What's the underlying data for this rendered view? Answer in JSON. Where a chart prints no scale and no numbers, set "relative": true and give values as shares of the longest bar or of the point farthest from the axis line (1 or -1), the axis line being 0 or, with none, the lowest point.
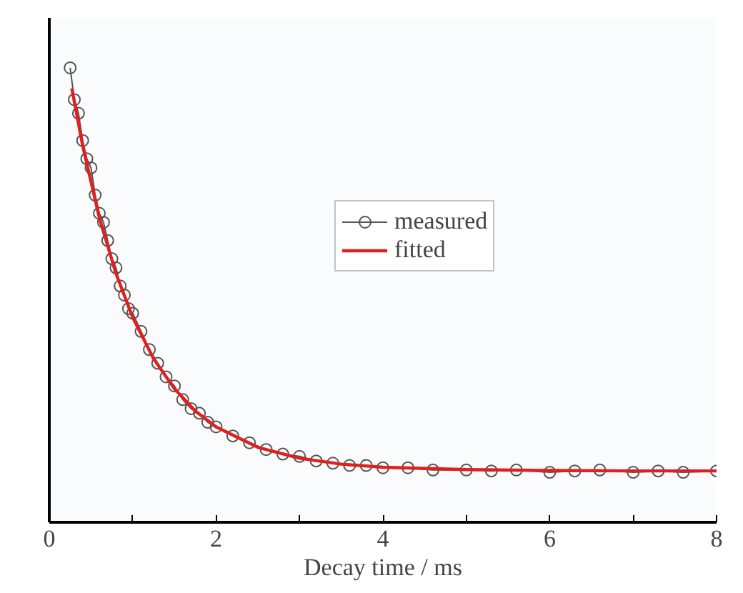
{
  "chart_data": {
    "type": "line",
    "xlabel": "Decay time / ms",
    "relative": true,
    "xlim": [
      0,
      8
    ],
    "xticks": [
      0,
      {
        "value": 1,
        "label": null
      },
      2,
      {
        "value": 3,
        "label": null
      },
      4,
      {
        "value": 5,
        "label": null
      },
      6,
      {
        "value": 7,
        "label": null
      },
      8
    ],
    "legend": "right",
    "grid": false,
    "series": [
      {
        "name": "measured",
        "marker": "circle",
        "color": "#555555",
        "x": [
          0.25,
          0.3,
          0.35,
          0.4,
          0.45,
          0.5,
          0.55,
          0.6,
          0.65,
          0.7,
          0.75,
          0.8,
          0.85,
          0.9,
          0.95,
          1.0,
          1.1,
          1.2,
          1.3,
          1.4,
          1.5,
          1.6,
          1.7,
          1.8,
          1.9,
          2.0,
          2.2,
          2.4,
          2.6,
          2.8,
          3.0,
          3.2,
          3.4,
          3.6,
          3.8,
          4.0,
          4.3,
          4.6,
          5.0,
          5.3,
          5.6,
          6.0,
          6.3,
          6.6,
          7.0,
          7.3,
          7.6,
          8.0
        ],
        "values": [
          1.0,
          0.93,
          0.9,
          0.84,
          0.8,
          0.78,
          0.72,
          0.68,
          0.66,
          0.62,
          0.58,
          0.56,
          0.52,
          0.5,
          0.47,
          0.46,
          0.42,
          0.38,
          0.35,
          0.32,
          0.3,
          0.27,
          0.25,
          0.24,
          0.22,
          0.21,
          0.19,
          0.175,
          0.16,
          0.15,
          0.145,
          0.135,
          0.13,
          0.125,
          0.125,
          0.12,
          0.12,
          0.115,
          0.115,
          0.113,
          0.115,
          0.11,
          0.113,
          0.115,
          0.11,
          0.113,
          0.11,
          0.113
        ]
      },
      {
        "name": "fitted",
        "marker": "none",
        "color": "#e02020",
        "x": [
          0.27,
          0.4,
          0.6,
          0.8,
          1.0,
          1.25,
          1.5,
          1.75,
          2.0,
          2.5,
          3.0,
          3.5,
          4.0,
          5.0,
          6.0,
          7.0,
          8.0
        ],
        "values": [
          0.955,
          0.829,
          0.67,
          0.547,
          0.451,
          0.36,
          0.294,
          0.245,
          0.21,
          0.165,
          0.141,
          0.128,
          0.121,
          0.116,
          0.114,
          0.113,
          0.113
        ]
      }
    ]
  }
}
